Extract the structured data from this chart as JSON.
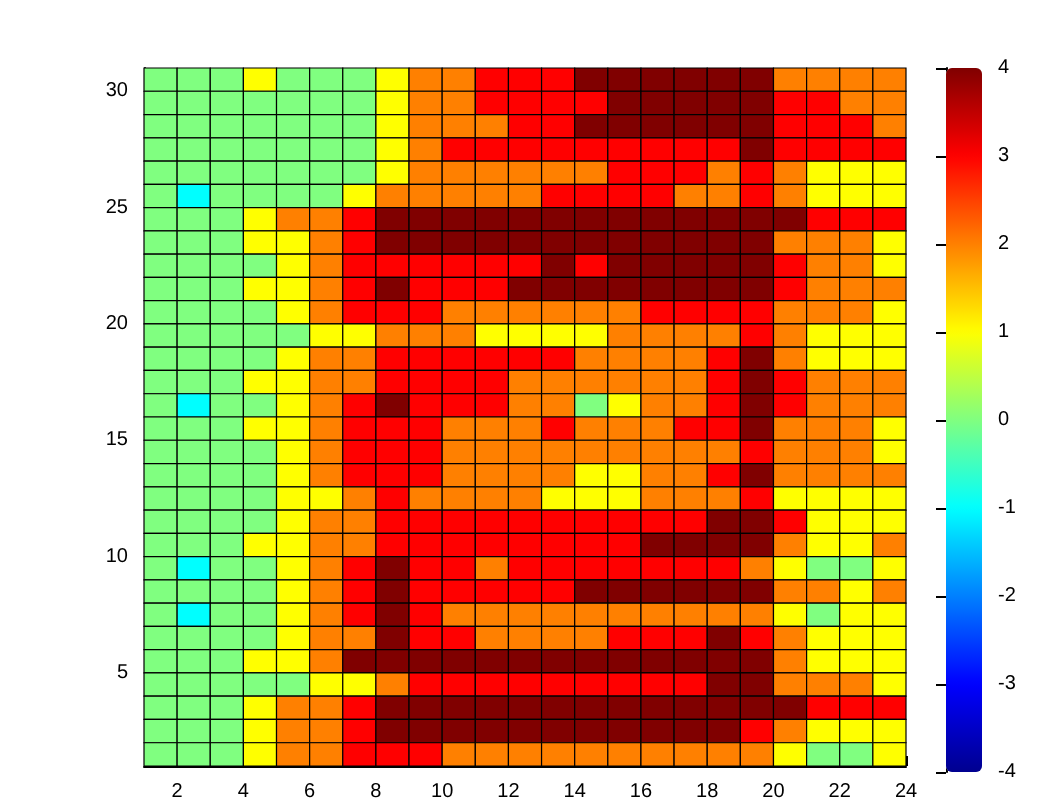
{
  "chart_data": {
    "type": "heatmap",
    "xlim": [
      1,
      24
    ],
    "xticks": [
      2,
      4,
      6,
      8,
      10,
      12,
      14,
      16,
      18,
      20,
      22,
      24
    ],
    "ylim": [
      1,
      31
    ],
    "yticks": [
      5,
      10,
      15,
      20,
      25,
      30
    ],
    "clim": [
      -4,
      4
    ],
    "cticks": [
      -4,
      -3,
      -2,
      -1,
      0,
      1,
      2,
      3,
      4
    ],
    "cells": [
      [
        0,
        0,
        0,
        1,
        0,
        0,
        0,
        1,
        2,
        2,
        3,
        3,
        3,
        4,
        4,
        4,
        4,
        4,
        4,
        2,
        2,
        2,
        2
      ],
      [
        0,
        0,
        0,
        0,
        0,
        0,
        0,
        1,
        2,
        2,
        3,
        3,
        3,
        3,
        4,
        4,
        4,
        4,
        4,
        3,
        3,
        2,
        2
      ],
      [
        0,
        0,
        0,
        0,
        0,
        0,
        0,
        1,
        2,
        2,
        2,
        3,
        3,
        4,
        4,
        4,
        4,
        4,
        4,
        3,
        3,
        3,
        2
      ],
      [
        0,
        0,
        0,
        0,
        0,
        0,
        0,
        1,
        2,
        3,
        3,
        3,
        3,
        3,
        3,
        3,
        3,
        3,
        4,
        3,
        3,
        3,
        3
      ],
      [
        0,
        0,
        0,
        0,
        0,
        0,
        0,
        1,
        2,
        2,
        2,
        2,
        2,
        2,
        3,
        3,
        3,
        2,
        3,
        2,
        1,
        1,
        1
      ],
      [
        0,
        -1,
        0,
        0,
        0,
        0,
        1,
        2,
        2,
        2,
        2,
        2,
        3,
        3,
        3,
        3,
        2,
        2,
        3,
        2,
        1,
        1,
        1
      ],
      [
        0,
        0,
        0,
        1,
        2,
        2,
        3,
        4,
        4,
        4,
        4,
        4,
        4,
        4,
        4,
        4,
        4,
        4,
        4,
        4,
        3,
        3,
        3
      ],
      [
        0,
        0,
        0,
        1,
        1,
        2,
        3,
        4,
        4,
        4,
        4,
        4,
        4,
        4,
        4,
        4,
        4,
        4,
        4,
        2,
        2,
        2,
        1
      ],
      [
        0,
        0,
        0,
        0,
        1,
        2,
        3,
        3,
        3,
        3,
        3,
        3,
        4,
        3,
        4,
        4,
        4,
        4,
        4,
        3,
        2,
        2,
        1
      ],
      [
        0,
        0,
        0,
        1,
        1,
        2,
        3,
        4,
        3,
        3,
        3,
        4,
        4,
        4,
        4,
        4,
        4,
        4,
        4,
        3,
        2,
        2,
        2
      ],
      [
        0,
        0,
        0,
        0,
        1,
        2,
        3,
        3,
        3,
        2,
        2,
        2,
        2,
        2,
        2,
        3,
        3,
        3,
        3,
        2,
        2,
        2,
        1
      ],
      [
        0,
        0,
        0,
        0,
        0,
        1,
        1,
        2,
        2,
        2,
        1,
        1,
        1,
        1,
        2,
        2,
        2,
        2,
        3,
        2,
        1,
        1,
        1
      ],
      [
        0,
        0,
        0,
        0,
        1,
        2,
        2,
        3,
        3,
        3,
        3,
        3,
        3,
        2,
        2,
        2,
        2,
        3,
        4,
        2,
        1,
        1,
        1
      ],
      [
        0,
        0,
        0,
        1,
        1,
        2,
        2,
        3,
        3,
        3,
        3,
        2,
        2,
        2,
        2,
        2,
        2,
        3,
        4,
        3,
        2,
        2,
        2
      ],
      [
        0,
        -1,
        0,
        0,
        1,
        2,
        3,
        4,
        3,
        3,
        3,
        2,
        2,
        0,
        1,
        2,
        2,
        3,
        4,
        3,
        2,
        2,
        2
      ],
      [
        0,
        0,
        0,
        1,
        1,
        2,
        3,
        3,
        3,
        2,
        2,
        2,
        3,
        2,
        2,
        2,
        3,
        3,
        4,
        2,
        2,
        2,
        1
      ],
      [
        0,
        0,
        0,
        0,
        1,
        2,
        3,
        3,
        3,
        2,
        2,
        2,
        2,
        2,
        2,
        2,
        2,
        2,
        3,
        2,
        2,
        2,
        1
      ],
      [
        0,
        0,
        0,
        0,
        1,
        2,
        3,
        3,
        3,
        2,
        2,
        2,
        2,
        1,
        1,
        2,
        2,
        3,
        4,
        2,
        2,
        2,
        2
      ],
      [
        0,
        0,
        0,
        0,
        1,
        1,
        2,
        3,
        2,
        2,
        2,
        2,
        1,
        1,
        1,
        2,
        2,
        2,
        3,
        1,
        1,
        1,
        1
      ],
      [
        0,
        0,
        0,
        0,
        1,
        2,
        2,
        3,
        3,
        3,
        3,
        3,
        3,
        3,
        3,
        3,
        3,
        4,
        4,
        3,
        1,
        1,
        1
      ],
      [
        0,
        0,
        0,
        1,
        1,
        2,
        2,
        3,
        3,
        3,
        3,
        3,
        3,
        3,
        3,
        4,
        4,
        4,
        4,
        2,
        1,
        1,
        2
      ],
      [
        0,
        -1,
        0,
        0,
        1,
        2,
        3,
        4,
        3,
        3,
        2,
        3,
        3,
        3,
        3,
        3,
        3,
        3,
        2,
        1,
        0,
        0,
        1
      ],
      [
        0,
        0,
        0,
        0,
        1,
        2,
        3,
        4,
        3,
        3,
        3,
        3,
        3,
        4,
        4,
        4,
        4,
        4,
        4,
        2,
        2,
        1,
        2
      ],
      [
        0,
        -1,
        0,
        0,
        1,
        2,
        3,
        4,
        3,
        2,
        2,
        2,
        2,
        2,
        2,
        2,
        2,
        2,
        2,
        1,
        0,
        1,
        1
      ],
      [
        0,
        0,
        0,
        0,
        1,
        2,
        2,
        4,
        3,
        3,
        2,
        2,
        2,
        2,
        3,
        3,
        3,
        4,
        3,
        2,
        1,
        1,
        1
      ],
      [
        0,
        0,
        0,
        1,
        1,
        2,
        4,
        4,
        4,
        4,
        4,
        4,
        4,
        4,
        4,
        4,
        4,
        4,
        4,
        2,
        1,
        1,
        1
      ],
      [
        0,
        0,
        0,
        0,
        0,
        1,
        1,
        2,
        3,
        3,
        3,
        3,
        3,
        3,
        3,
        3,
        3,
        4,
        4,
        2,
        2,
        2,
        1
      ],
      [
        0,
        0,
        0,
        1,
        2,
        2,
        3,
        4,
        4,
        4,
        4,
        4,
        4,
        4,
        4,
        4,
        4,
        4,
        4,
        4,
        3,
        3,
        3
      ],
      [
        0,
        0,
        0,
        1,
        2,
        2,
        3,
        4,
        4,
        4,
        4,
        4,
        4,
        4,
        4,
        4,
        4,
        4,
        3,
        2,
        1,
        1,
        1
      ],
      [
        0,
        0,
        0,
        1,
        2,
        2,
        3,
        3,
        3,
        2,
        2,
        2,
        2,
        2,
        2,
        2,
        2,
        2,
        2,
        1,
        0,
        0,
        1
      ]
    ]
  }
}
